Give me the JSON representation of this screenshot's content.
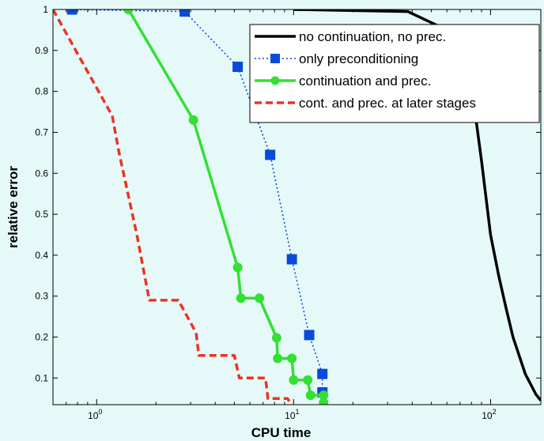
{
  "chart_data": {
    "type": "line",
    "title": "",
    "xlabel": "CPU time",
    "ylabel": "relative error",
    "x_scale": "log",
    "xlim": [
      0.6,
      180
    ],
    "ylim": [
      0.035,
      1.0
    ],
    "grid": false,
    "legend_position": "top-right",
    "x_tick_values": [
      1,
      10,
      100
    ],
    "x_tick_labels": [
      {
        "base": "10",
        "exp": "0"
      },
      {
        "base": "10",
        "exp": "1"
      },
      {
        "base": "10",
        "exp": "2"
      }
    ],
    "y_ticks": [
      "0.1",
      "0.2",
      "0.3",
      "0.4",
      "0.5",
      "0.6",
      "0.7",
      "0.8",
      "0.9",
      "1"
    ],
    "series": [
      {
        "name": "no continuation, no prec.",
        "color": "#000000",
        "style": "solid",
        "marker": "none",
        "x": [
          10,
          38,
          60,
          70,
          80,
          85,
          90,
          100,
          110,
          120,
          130,
          150,
          170,
          180
        ],
        "y": [
          1.0,
          0.995,
          0.95,
          0.9,
          0.8,
          0.72,
          0.63,
          0.45,
          0.35,
          0.27,
          0.2,
          0.11,
          0.06,
          0.045
        ]
      },
      {
        "name": "only preconditioning",
        "color": "#0a4ad8",
        "style": "dotted",
        "marker": "square",
        "x": [
          0.75,
          2.8,
          5.2,
          7.6,
          9.8,
          12,
          14,
          14
        ],
        "y": [
          1.0,
          0.995,
          0.86,
          0.645,
          0.39,
          0.205,
          0.11,
          0.065
        ]
      },
      {
        "name": "continuation and prec.",
        "color": "#33e033",
        "style": "solid",
        "marker": "circle",
        "x": [
          1.45,
          3.1,
          5.2,
          5.4,
          6.7,
          8.2,
          8.3,
          9.8,
          10,
          11.8,
          12.2,
          14.2,
          14.2
        ],
        "y": [
          1.0,
          0.73,
          0.37,
          0.295,
          0.295,
          0.198,
          0.148,
          0.148,
          0.095,
          0.095,
          0.058,
          0.058,
          0.04
        ]
      },
      {
        "name": "cont. and prec. at later stages",
        "color": "#ee3322",
        "style": "dashed",
        "marker": "none",
        "x": [
          0.6,
          1.2,
          1.3,
          1.6,
          1.85,
          2.6,
          3.2,
          3.3,
          5.0,
          5.3,
          7.2,
          7.4,
          9.3,
          9.6
        ],
        "y": [
          1.0,
          0.74,
          0.65,
          0.45,
          0.29,
          0.29,
          0.21,
          0.155,
          0.155,
          0.1,
          0.1,
          0.05,
          0.05,
          0.04
        ]
      }
    ]
  }
}
